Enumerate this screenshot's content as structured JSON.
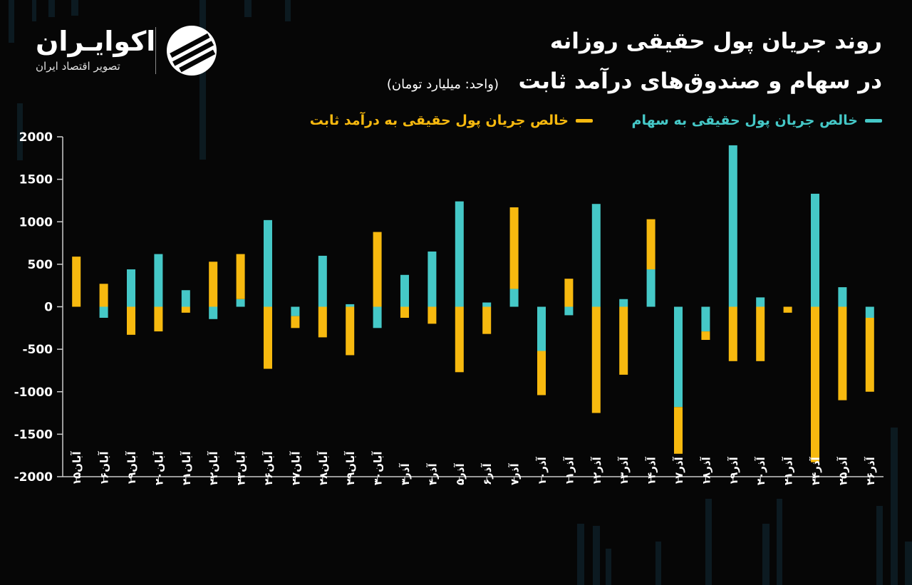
{
  "header": {
    "title_line1": "روند جریان پول حقیقی روزانه",
    "title_line2": "در سهام و صندوق‌های درآمد ثابت",
    "unit": "(واحد: میلیارد تومان)"
  },
  "logo": {
    "name": "اکوایـران",
    "subtitle": "تصویر اقتصاد ایران"
  },
  "legend": {
    "stocks": "خالص جریان پول حقیقی به سهام",
    "fixed_income": "خالص جریان پول حقیقی به درآمد ثابت"
  },
  "colors": {
    "background": "#060606",
    "stocks": "#45c8c7",
    "fixed_income": "#f7b90f",
    "axis": "#cccccc",
    "text": "#ffffff"
  },
  "chart_data": {
    "type": "bar",
    "stacked": true,
    "title": "روند جریان پول حقیقی روزانه در سهام و صندوق‌های درآمد ثابت",
    "ylabel": "",
    "xlabel": "",
    "ylim": [
      -2000,
      2000
    ],
    "yticks": [
      "2000",
      "1500",
      "1000",
      "500",
      "0",
      "-500",
      "-1000",
      "-1500",
      "-2000"
    ],
    "ytick_values": [
      2000,
      1500,
      1000,
      500,
      0,
      -500,
      -1000,
      -1500,
      -2000
    ],
    "categories": [
      "آبان۱۵",
      "آبان۱۶",
      "آبان۱۹",
      "آبان۲۰",
      "آبان۲۱",
      "آبان۲۲",
      "آبان۲۳",
      "آبان۲۶",
      "آبان۲۷",
      "آبان۲۸",
      "آبان۲۹",
      "آبان۳۰",
      "آذر۳",
      "آذر۴",
      "آذر۵",
      "آذر۶",
      "آذر۷",
      "آذر۱۰",
      "آذر۱۱",
      "آذر۱۲",
      "آذر۱۳",
      "آذر۱۴",
      "آذر۱۷",
      "آذر۱۸",
      "آذر۱۹",
      "آذر۲۰",
      "آذر۲۱",
      "آذر۲۴",
      "آذر۲۵",
      "آذر۲۶"
    ],
    "series": [
      {
        "name": "خالص جریان پول حقیقی به سهام",
        "values": [
          0,
          -130,
          440,
          620,
          195,
          -145,
          90,
          1020,
          -110,
          600,
          30,
          -250,
          375,
          650,
          1240,
          50,
          210,
          -520,
          -100,
          1210,
          90,
          440,
          -1180,
          -290,
          1900,
          110,
          0,
          1330,
          230,
          -130
        ]
      },
      {
        "name": "خالص جریان پول حقیقی به درآمد ثابت",
        "values": [
          590,
          270,
          -330,
          -290,
          -70,
          530,
          530,
          -730,
          -140,
          -360,
          -570,
          880,
          -130,
          -200,
          -770,
          -320,
          960,
          -520,
          330,
          -1250,
          -800,
          590,
          -550,
          -100,
          -640,
          -640,
          -70,
          -1830,
          -1100,
          -870
        ]
      }
    ],
    "grid": false,
    "legend_position": "top-right"
  }
}
